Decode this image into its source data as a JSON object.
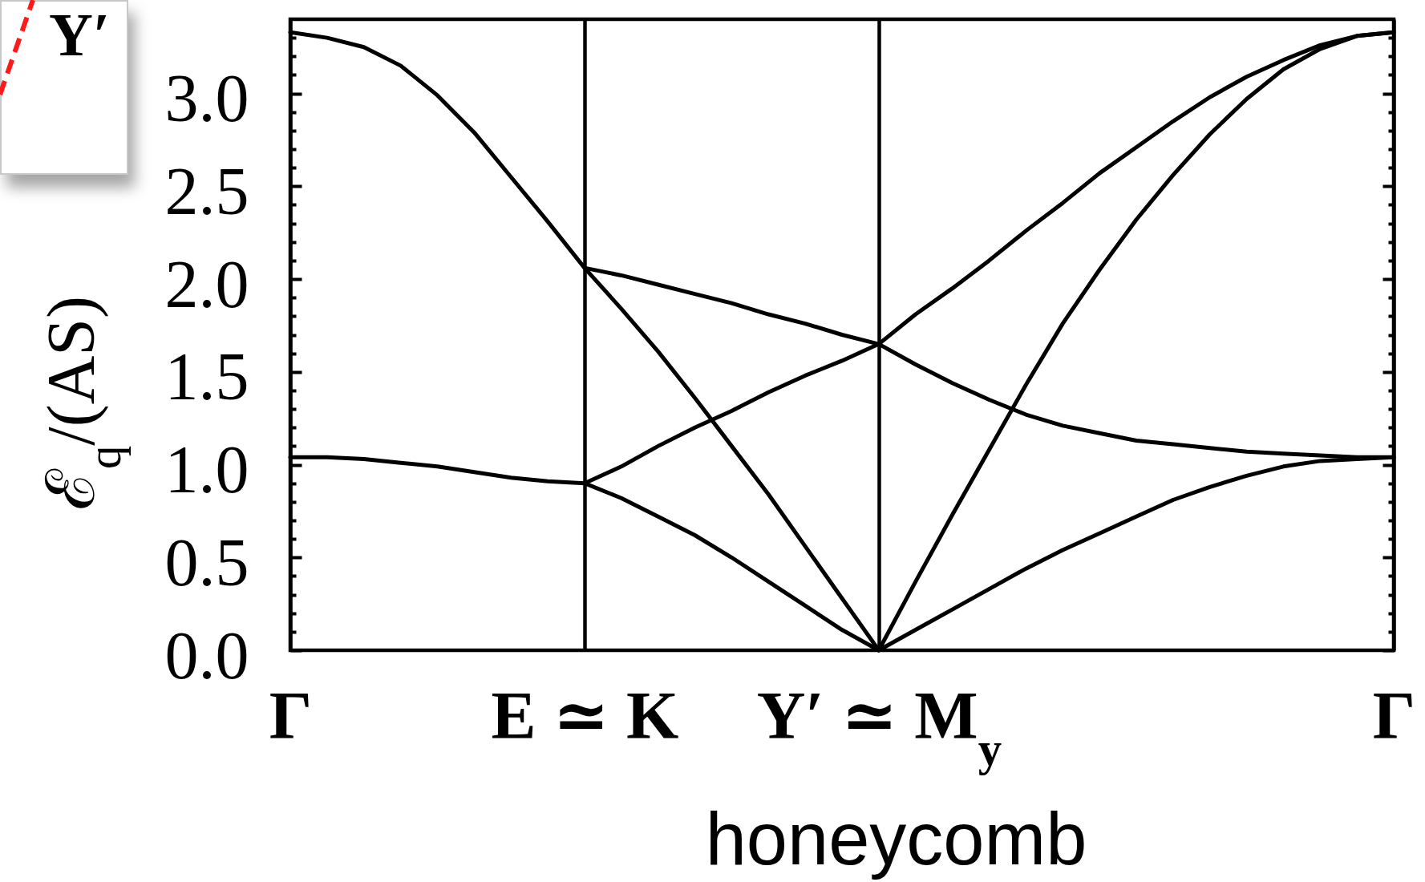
{
  "chart_data": {
    "type": "line",
    "xlabel": "honeycomb",
    "ylabel": "ℰ$_{q}$/(AS)",
    "annotations": [
      "Y′"
    ],
    "categories": [
      "Γ",
      null,
      null,
      null,
      null,
      null,
      null,
      null,
      "E ≃ K",
      null,
      null,
      null,
      null,
      null,
      null,
      null,
      "Y′ ≃ M$_{y}$",
      null,
      null,
      null,
      null,
      null,
      null,
      null,
      null,
      null,
      null,
      null,
      null,
      null,
      "Γ"
    ],
    "ylim": [
      0,
      3.4
    ],
    "yticks": [
      {
        "value": 0,
        "label": "0.0"
      },
      {
        "value": 0.1,
        "label": null
      },
      {
        "value": 0.2,
        "label": null
      },
      {
        "value": 0.3,
        "label": null
      },
      {
        "value": 0.4,
        "label": null
      },
      0.5,
      {
        "value": 0.6,
        "label": null
      },
      {
        "value": 0.7,
        "label": null
      },
      {
        "value": 0.8,
        "label": null
      },
      {
        "value": 0.9,
        "label": null
      },
      {
        "value": 1,
        "label": "1.0"
      },
      {
        "value": 1.1,
        "label": null
      },
      {
        "value": 1.2,
        "label": null
      },
      {
        "value": 1.3,
        "label": null
      },
      {
        "value": 1.4,
        "label": null
      },
      1.5,
      {
        "value": 1.6,
        "label": null
      },
      {
        "value": 1.7,
        "label": null
      },
      {
        "value": 1.8,
        "label": null
      },
      {
        "value": 1.9,
        "label": null
      },
      {
        "value": 2,
        "label": "2.0"
      },
      {
        "value": 2.1,
        "label": null
      },
      {
        "value": 2.2,
        "label": null
      },
      {
        "value": 2.3,
        "label": null
      },
      {
        "value": 2.4,
        "label": null
      },
      2.5,
      {
        "value": 2.6,
        "label": null
      },
      {
        "value": 2.7,
        "label": null
      },
      {
        "value": 2.8,
        "label": null
      },
      {
        "value": 2.9,
        "label": null
      },
      {
        "value": 3,
        "label": "3.0"
      },
      {
        "value": 3.1,
        "label": null
      },
      {
        "value": 3.2,
        "label": null
      },
      {
        "value": 3.3,
        "label": null
      }
    ],
    "grid": "x",
    "line_style": "solid",
    "series": [
      {
        "color": "#000000",
        "values": [
          3.33,
          3.3,
          3.25,
          3.15,
          2.99,
          2.79,
          2.55,
          2.31,
          2.06,
          2.02,
          1.97,
          1.92,
          1.87,
          1.81,
          1.76,
          1.7,
          1.65,
          1.81,
          1.95,
          2.1,
          2.26,
          2.41,
          2.57,
          2.71,
          2.85,
          2.98,
          3.09,
          3.18,
          3.26,
          3.31,
          3.33
        ]
      },
      {
        "color": "#000000",
        "values": [
          null,
          null,
          null,
          null,
          null,
          null,
          null,
          null,
          2.06,
          1.84,
          1.61,
          1.36,
          1.1,
          0.84,
          0.56,
          0.28,
          0,
          0.37,
          0.73,
          1.08,
          1.43,
          1.76,
          2.05,
          2.32,
          2.56,
          2.78,
          2.97,
          3.13,
          3.24,
          3.31,
          3.33
        ]
      },
      {
        "color": "#000000",
        "values": [
          1.04,
          1.04,
          1.03,
          1.01,
          0.99,
          0.96,
          0.93,
          0.91,
          0.9,
          0.99,
          1.1,
          1.2,
          1.29,
          1.39,
          1.48,
          1.56,
          1.65,
          1.54,
          1.44,
          1.35,
          1.27,
          1.21,
          1.17,
          1.13,
          1.11,
          1.09,
          1.07,
          1.06,
          1.05,
          1.04,
          1.04
        ]
      },
      {
        "color": "#000000",
        "values": [
          null,
          null,
          null,
          null,
          null,
          null,
          null,
          null,
          0.9,
          0.82,
          0.72,
          0.62,
          0.5,
          0.37,
          0.24,
          0.11,
          0,
          0.11,
          0.22,
          0.33,
          0.44,
          0.54,
          0.63,
          0.72,
          0.81,
          0.88,
          0.94,
          0.99,
          1.02,
          1.03,
          1.04
        ]
      }
    ]
  }
}
